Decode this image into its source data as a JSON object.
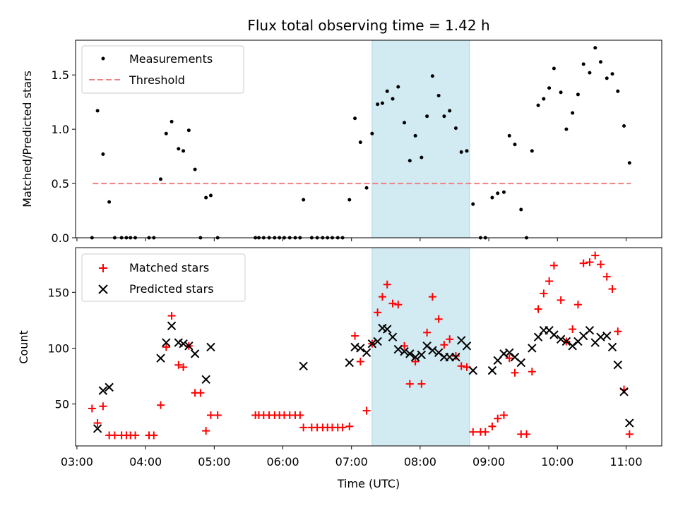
{
  "figure": {
    "title": "Flux total observing time = 1.42 h"
  },
  "chart_data": [
    {
      "type": "scatter",
      "ylabel": "Matched/Predicted stars",
      "xlabel": "",
      "x_unit": "hours UTC",
      "xlim": [
        2.98,
        11.52
      ],
      "ylim": [
        0,
        1.82
      ],
      "yticks": [
        0.0,
        0.5,
        1.0,
        1.5
      ],
      "ytick_labels": [
        "0.0",
        "0.5",
        "1.0",
        "1.5"
      ],
      "shaded_region": {
        "x": [
          7.3,
          8.72
        ],
        "color": "#add8e6"
      },
      "threshold": {
        "name": "Threshold",
        "y": 0.5,
        "x_range": [
          3.23,
          11.07
        ],
        "color": "#f08080"
      },
      "legend": {
        "position": "top-left"
      },
      "series": [
        {
          "name": "Measurements",
          "color": "#000000",
          "marker": "dot",
          "points": [
            [
              3.22,
              0.0
            ],
            [
              3.3,
              1.17
            ],
            [
              3.38,
              0.77
            ],
            [
              3.47,
              0.33
            ],
            [
              3.55,
              0.0
            ],
            [
              3.65,
              0.0
            ],
            [
              3.72,
              0.0
            ],
            [
              3.78,
              0.0
            ],
            [
              3.85,
              0.0
            ],
            [
              4.05,
              0.0
            ],
            [
              4.12,
              0.0
            ],
            [
              4.22,
              0.54
            ],
            [
              4.3,
              0.96
            ],
            [
              4.38,
              1.07
            ],
            [
              4.48,
              0.82
            ],
            [
              4.55,
              0.8
            ],
            [
              4.63,
              0.99
            ],
            [
              4.72,
              0.63
            ],
            [
              4.8,
              0.0
            ],
            [
              4.88,
              0.37
            ],
            [
              4.95,
              0.39
            ],
            [
              5.05,
              0.0
            ],
            [
              5.6,
              0.0
            ],
            [
              5.65,
              0.0
            ],
            [
              5.72,
              0.0
            ],
            [
              5.8,
              0.0
            ],
            [
              5.88,
              0.0
            ],
            [
              5.95,
              0.0
            ],
            [
              6.02,
              0.0
            ],
            [
              6.1,
              0.0
            ],
            [
              6.18,
              0.0
            ],
            [
              6.25,
              0.0
            ],
            [
              6.3,
              0.35
            ],
            [
              6.42,
              0.0
            ],
            [
              6.5,
              0.0
            ],
            [
              6.58,
              0.0
            ],
            [
              6.65,
              0.0
            ],
            [
              6.72,
              0.0
            ],
            [
              6.8,
              0.0
            ],
            [
              6.87,
              0.0
            ],
            [
              6.97,
              0.35
            ],
            [
              7.05,
              1.1
            ],
            [
              7.13,
              0.88
            ],
            [
              7.22,
              0.46
            ],
            [
              7.3,
              0.96
            ],
            [
              7.38,
              1.23
            ],
            [
              7.45,
              1.24
            ],
            [
              7.52,
              1.35
            ],
            [
              7.6,
              1.28
            ],
            [
              7.68,
              1.39
            ],
            [
              7.77,
              1.06
            ],
            [
              7.85,
              0.71
            ],
            [
              7.93,
              0.94
            ],
            [
              8.02,
              0.74
            ],
            [
              8.1,
              1.12
            ],
            [
              8.18,
              1.49
            ],
            [
              8.27,
              1.31
            ],
            [
              8.35,
              1.12
            ],
            [
              8.43,
              1.17
            ],
            [
              8.52,
              1.01
            ],
            [
              8.6,
              0.79
            ],
            [
              8.68,
              0.8
            ],
            [
              8.77,
              0.31
            ],
            [
              8.88,
              0.0
            ],
            [
              8.95,
              0.0
            ],
            [
              9.05,
              0.37
            ],
            [
              9.13,
              0.41
            ],
            [
              9.22,
              0.42
            ],
            [
              9.3,
              0.94
            ],
            [
              9.38,
              0.86
            ],
            [
              9.47,
              0.26
            ],
            [
              9.55,
              0.0
            ],
            [
              9.63,
              0.8
            ],
            [
              9.72,
              1.22
            ],
            [
              9.8,
              1.28
            ],
            [
              9.88,
              1.38
            ],
            [
              9.95,
              1.56
            ],
            [
              10.05,
              1.34
            ],
            [
              10.13,
              1.0
            ],
            [
              10.22,
              1.15
            ],
            [
              10.3,
              1.32
            ],
            [
              10.38,
              1.6
            ],
            [
              10.47,
              1.52
            ],
            [
              10.55,
              1.75
            ],
            [
              10.63,
              1.62
            ],
            [
              10.72,
              1.47
            ],
            [
              10.8,
              1.51
            ],
            [
              10.88,
              1.35
            ],
            [
              10.97,
              1.03
            ],
            [
              11.05,
              0.69
            ]
          ]
        }
      ]
    },
    {
      "type": "scatter",
      "ylabel": "Count",
      "xlabel": "Time (UTC)",
      "x_unit": "hours UTC",
      "xlim": [
        2.98,
        11.52
      ],
      "ylim": [
        12.5,
        190
      ],
      "yticks": [
        50,
        100,
        150
      ],
      "ytick_labels": [
        "50",
        "100",
        "150"
      ],
      "xticks": [
        3,
        4,
        5,
        6,
        7,
        8,
        9,
        10,
        11
      ],
      "xtick_labels": [
        "03:00",
        "04:00",
        "05:00",
        "06:00",
        "07:00",
        "08:00",
        "09:00",
        "10:00",
        "11:00"
      ],
      "shaded_region": {
        "x": [
          7.3,
          8.72
        ],
        "color": "#add8e6"
      },
      "legend": {
        "position": "top-left"
      },
      "series": [
        {
          "name": "Matched stars",
          "color": "#ff0000",
          "marker": "plus",
          "points": [
            [
              3.22,
              46
            ],
            [
              3.3,
              33
            ],
            [
              3.38,
              48
            ],
            [
              3.47,
              22
            ],
            [
              3.55,
              22
            ],
            [
              3.65,
              22
            ],
            [
              3.72,
              22
            ],
            [
              3.78,
              22
            ],
            [
              3.85,
              22
            ],
            [
              4.05,
              22
            ],
            [
              4.12,
              22
            ],
            [
              4.22,
              49
            ],
            [
              4.3,
              101
            ],
            [
              4.38,
              129
            ],
            [
              4.48,
              85
            ],
            [
              4.55,
              83
            ],
            [
              4.63,
              102
            ],
            [
              4.72,
              60
            ],
            [
              4.8,
              60
            ],
            [
              4.88,
              26
            ],
            [
              4.95,
              40
            ],
            [
              5.05,
              40
            ],
            [
              5.6,
              40
            ],
            [
              5.65,
              40
            ],
            [
              5.72,
              40
            ],
            [
              5.8,
              40
            ],
            [
              5.88,
              40
            ],
            [
              5.95,
              40
            ],
            [
              6.02,
              40
            ],
            [
              6.1,
              40
            ],
            [
              6.18,
              40
            ],
            [
              6.25,
              40
            ],
            [
              6.3,
              29
            ],
            [
              6.42,
              29
            ],
            [
              6.5,
              29
            ],
            [
              6.58,
              29
            ],
            [
              6.65,
              29
            ],
            [
              6.72,
              29
            ],
            [
              6.8,
              29
            ],
            [
              6.87,
              29
            ],
            [
              6.97,
              30
            ],
            [
              7.05,
              111
            ],
            [
              7.13,
              88
            ],
            [
              7.22,
              44
            ],
            [
              7.3,
              104
            ],
            [
              7.38,
              132
            ],
            [
              7.45,
              146
            ],
            [
              7.52,
              157
            ],
            [
              7.6,
              140
            ],
            [
              7.68,
              139
            ],
            [
              7.77,
              102
            ],
            [
              7.85,
              68
            ],
            [
              7.93,
              88
            ],
            [
              8.02,
              68
            ],
            [
              8.1,
              114
            ],
            [
              8.18,
              146
            ],
            [
              8.27,
              126
            ],
            [
              8.35,
              103
            ],
            [
              8.43,
              108
            ],
            [
              8.52,
              93
            ],
            [
              8.6,
              84
            ],
            [
              8.68,
              83
            ],
            [
              8.77,
              25
            ],
            [
              8.88,
              25
            ],
            [
              8.95,
              25
            ],
            [
              9.05,
              30
            ],
            [
              9.13,
              37
            ],
            [
              9.22,
              40
            ],
            [
              9.3,
              91
            ],
            [
              9.38,
              78
            ],
            [
              9.47,
              23
            ],
            [
              9.55,
              23
            ],
            [
              9.63,
              79
            ],
            [
              9.72,
              135
            ],
            [
              9.8,
              149
            ],
            [
              9.88,
              160
            ],
            [
              9.95,
              174
            ],
            [
              10.05,
              143
            ],
            [
              10.13,
              106
            ],
            [
              10.22,
              117
            ],
            [
              10.3,
              139
            ],
            [
              10.38,
              176
            ],
            [
              10.47,
              177
            ],
            [
              10.55,
              183
            ],
            [
              10.63,
              175
            ],
            [
              10.72,
              164
            ],
            [
              10.8,
              153
            ],
            [
              10.88,
              115
            ],
            [
              10.97,
              63
            ],
            [
              11.05,
              23
            ]
          ]
        },
        {
          "name": "Predicted stars",
          "color": "#000000",
          "marker": "x",
          "points": [
            [
              3.3,
              28
            ],
            [
              3.38,
              62
            ],
            [
              3.47,
              65
            ],
            [
              4.22,
              91
            ],
            [
              4.3,
              105
            ],
            [
              4.38,
              120
            ],
            [
              4.48,
              105
            ],
            [
              4.55,
              104
            ],
            [
              4.63,
              102
            ],
            [
              4.72,
              95
            ],
            [
              4.88,
              72
            ],
            [
              4.95,
              101
            ],
            [
              6.3,
              84
            ],
            [
              6.97,
              87
            ],
            [
              7.05,
              101
            ],
            [
              7.13,
              100
            ],
            [
              7.22,
              96
            ],
            [
              7.3,
              104
            ],
            [
              7.38,
              106
            ],
            [
              7.45,
              118
            ],
            [
              7.52,
              117
            ],
            [
              7.6,
              110
            ],
            [
              7.68,
              99
            ],
            [
              7.77,
              97
            ],
            [
              7.85,
              95
            ],
            [
              7.93,
              92
            ],
            [
              8.02,
              94
            ],
            [
              8.1,
              102
            ],
            [
              8.18,
              98
            ],
            [
              8.27,
              96
            ],
            [
              8.35,
              92
            ],
            [
              8.43,
              92
            ],
            [
              8.52,
              92
            ],
            [
              8.6,
              107
            ],
            [
              8.68,
              102
            ],
            [
              8.77,
              80
            ],
            [
              9.05,
              80
            ],
            [
              9.13,
              89
            ],
            [
              9.22,
              95
            ],
            [
              9.3,
              96
            ],
            [
              9.38,
              92
            ],
            [
              9.47,
              87
            ],
            [
              9.63,
              100
            ],
            [
              9.72,
              110
            ],
            [
              9.8,
              116
            ],
            [
              9.88,
              116
            ],
            [
              9.95,
              112
            ],
            [
              10.05,
              108
            ],
            [
              10.13,
              106
            ],
            [
              10.22,
              102
            ],
            [
              10.3,
              106
            ],
            [
              10.38,
              111
            ],
            [
              10.47,
              116
            ],
            [
              10.55,
              105
            ],
            [
              10.63,
              110
            ],
            [
              10.72,
              111
            ],
            [
              10.8,
              101
            ],
            [
              10.88,
              85
            ],
            [
              10.97,
              61
            ],
            [
              11.05,
              33
            ]
          ]
        }
      ]
    }
  ]
}
